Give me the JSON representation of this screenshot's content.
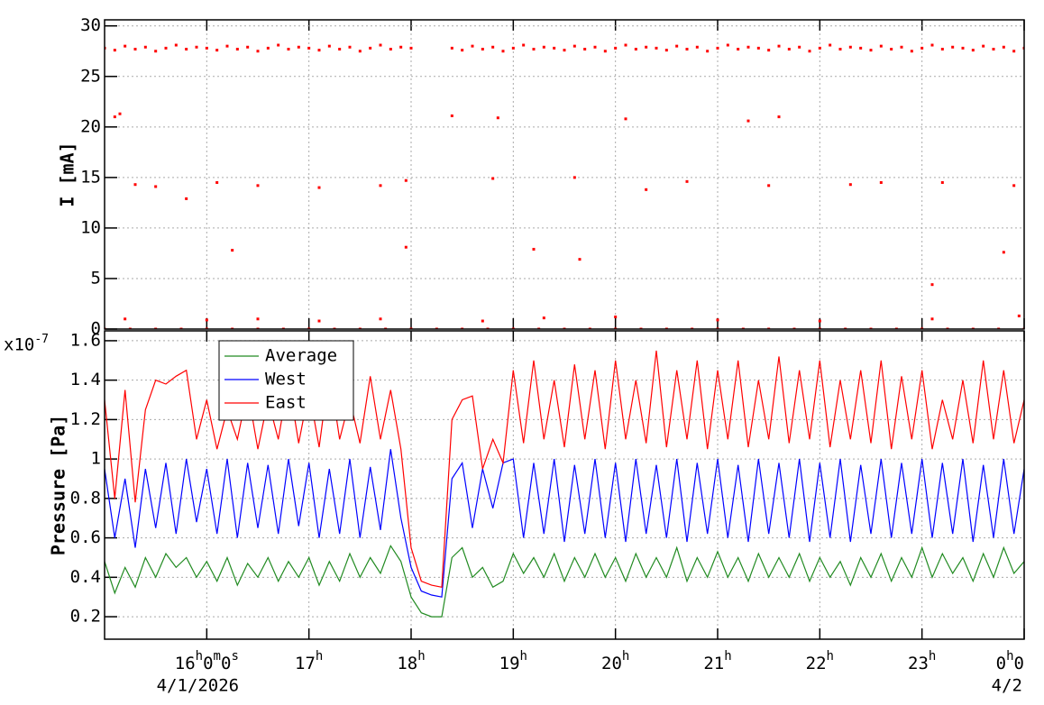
{
  "chart_data": [
    {
      "type": "scatter",
      "y_label": "I [mA]",
      "color": "#ff0000",
      "xlim": [
        15,
        24
      ],
      "ylim": [
        0,
        30.6
      ],
      "grid": true,
      "xticks": [
        16,
        17,
        18,
        19,
        20,
        21,
        22,
        23,
        24
      ],
      "yticks": [
        0,
        5,
        10,
        15,
        20,
        25,
        30
      ],
      "x": [
        15,
        15.1,
        15.2,
        15.3,
        15.4,
        15.5,
        15.6,
        15.7,
        15.8,
        15.9,
        16,
        16.1,
        16.2,
        16.3,
        16.4,
        16.5,
        16.6,
        16.7,
        16.8,
        16.9,
        17,
        17.1,
        17.2,
        17.3,
        17.4,
        17.5,
        17.6,
        17.7,
        17.8,
        17.9,
        18,
        18.4,
        18.5,
        18.6,
        18.7,
        18.8,
        18.9,
        19,
        19.1,
        19.2,
        19.3,
        19.4,
        19.5,
        19.6,
        19.7,
        19.8,
        19.9,
        20,
        20.1,
        20.2,
        20.3,
        20.4,
        20.5,
        20.6,
        20.7,
        20.8,
        20.9,
        21,
        21.1,
        21.2,
        21.3,
        21.4,
        21.5,
        21.6,
        21.7,
        21.8,
        21.9,
        22,
        22.1,
        22.2,
        22.3,
        22.4,
        22.5,
        22.6,
        22.7,
        22.8,
        22.9,
        23,
        23.1,
        23.2,
        23.3,
        23.4,
        23.5,
        23.6,
        23.7,
        23.8,
        23.9,
        24,
        15.1,
        15.15,
        15.3,
        15.5,
        15.8,
        16.1,
        16.25,
        16.5,
        17.1,
        17.7,
        17.95,
        17.95,
        18.4,
        18.85,
        18.8,
        19.2,
        19.65,
        19.6,
        20.1,
        20.3,
        20.7,
        21.3,
        21.6,
        21.5,
        22.3,
        22.6,
        23.1,
        23.2,
        23.8,
        23.9,
        15.2,
        16,
        16.5,
        17.1,
        17.7,
        18.7,
        19.3,
        20,
        21,
        22,
        23.1,
        23.95,
        15,
        15.25,
        15.5,
        15.75,
        16,
        16.25,
        16.5,
        16.75,
        17,
        17.25,
        17.5,
        17.75,
        18,
        18.25,
        18.5,
        18.75,
        19,
        19.25,
        19.5,
        19.75,
        20,
        20.25,
        20.5,
        20.75,
        21,
        21.25,
        21.5,
        21.75,
        22,
        22.25,
        22.5,
        22.75,
        23,
        23.25,
        23.5,
        23.75,
        24
      ],
      "values": [
        27.8,
        27.6,
        28,
        27.7,
        27.9,
        27.5,
        27.8,
        28.1,
        27.7,
        27.9,
        27.8,
        27.6,
        28,
        27.7,
        27.9,
        27.5,
        27.8,
        28.1,
        27.7,
        27.9,
        27.8,
        27.6,
        28,
        27.7,
        27.9,
        27.5,
        27.8,
        28.1,
        27.7,
        27.9,
        27.8,
        27.8,
        27.6,
        28,
        27.7,
        27.9,
        27.5,
        27.8,
        28.1,
        27.7,
        27.9,
        27.8,
        27.6,
        28,
        27.7,
        27.9,
        27.5,
        27.8,
        28.1,
        27.7,
        27.9,
        27.8,
        27.6,
        28,
        27.7,
        27.9,
        27.5,
        27.8,
        28.1,
        27.7,
        27.9,
        27.8,
        27.6,
        28,
        27.7,
        27.9,
        27.5,
        27.8,
        28.1,
        27.7,
        27.9,
        27.8,
        27.6,
        28,
        27.7,
        27.9,
        27.5,
        27.8,
        28.1,
        27.7,
        27.9,
        27.8,
        27.6,
        28,
        27.7,
        27.9,
        27.5,
        27.8,
        21,
        21.3,
        14.3,
        14.1,
        12.9,
        14.5,
        7.8,
        14.2,
        14,
        14.2,
        8.1,
        14.7,
        21.1,
        20.9,
        14.9,
        7.9,
        6.9,
        15,
        20.8,
        13.8,
        14.6,
        20.6,
        21,
        14.2,
        14.3,
        14.5,
        4.4,
        14.5,
        7.6,
        14.2,
        1,
        0.9,
        1,
        0.8,
        1,
        0.8,
        1.1,
        1.2,
        0.9,
        0.8,
        1,
        1.3,
        0,
        0,
        0,
        0,
        0,
        0,
        0,
        0,
        0,
        0,
        0,
        0,
        0,
        0,
        0,
        0,
        0,
        0,
        0,
        0,
        0,
        0,
        0,
        0,
        0,
        0,
        0,
        0,
        0,
        0,
        0,
        0,
        0,
        0,
        0,
        0,
        0
      ]
    },
    {
      "type": "line",
      "y_label": "Pressure [Pa]",
      "y_multiplier": "x10",
      "y_exponent": "-7",
      "xlim": [
        15,
        24
      ],
      "ylim": [
        0.086,
        1.65
      ],
      "grid": true,
      "legend": "top-left",
      "xticks": [
        {
          "value": 16,
          "label": "16h0m0s"
        },
        {
          "value": 17,
          "label": "17h"
        },
        {
          "value": 18,
          "label": "18h"
        },
        {
          "value": 19,
          "label": "19h"
        },
        {
          "value": 20,
          "label": "20h"
        },
        {
          "value": 21,
          "label": "21h"
        },
        {
          "value": 22,
          "label": "22h"
        },
        {
          "value": 23,
          "label": "23h"
        },
        {
          "value": 24,
          "label": "0h0"
        }
      ],
      "x_date_labels": [
        {
          "value": 16,
          "label": "4/1/2026"
        },
        {
          "value": 24,
          "label": "4/2"
        }
      ],
      "yticks": [
        0.2,
        0.4,
        0.6,
        0.8,
        1,
        1.2,
        1.4,
        1.6
      ],
      "x": [
        15,
        15.1,
        15.2,
        15.3,
        15.4,
        15.5,
        15.6,
        15.7,
        15.8,
        15.9,
        16,
        16.1,
        16.2,
        16.3,
        16.4,
        16.5,
        16.6,
        16.7,
        16.8,
        16.9,
        17,
        17.1,
        17.2,
        17.3,
        17.4,
        17.5,
        17.6,
        17.7,
        17.8,
        17.9,
        18,
        18.1,
        18.2,
        18.3,
        18.4,
        18.5,
        18.6,
        18.7,
        18.8,
        18.9,
        19,
        19.1,
        19.2,
        19.3,
        19.4,
        19.5,
        19.6,
        19.7,
        19.8,
        19.9,
        20,
        20.1,
        20.2,
        20.3,
        20.4,
        20.5,
        20.6,
        20.7,
        20.8,
        20.9,
        21,
        21.1,
        21.2,
        21.3,
        21.4,
        21.5,
        21.6,
        21.7,
        21.8,
        21.9,
        22,
        22.1,
        22.2,
        22.3,
        22.4,
        22.5,
        22.6,
        22.7,
        22.8,
        22.9,
        23,
        23.1,
        23.2,
        23.3,
        23.4,
        23.5,
        23.6,
        23.7,
        23.8,
        23.9,
        24
      ],
      "series": [
        {
          "name": "Average",
          "color": "#228b22",
          "values": [
            0.48,
            0.32,
            0.45,
            0.35,
            0.5,
            0.4,
            0.52,
            0.45,
            0.5,
            0.4,
            0.48,
            0.38,
            0.5,
            0.36,
            0.47,
            0.4,
            0.5,
            0.38,
            0.48,
            0.4,
            0.5,
            0.36,
            0.48,
            0.38,
            0.52,
            0.4,
            0.5,
            0.42,
            0.56,
            0.48,
            0.3,
            0.22,
            0.2,
            0.2,
            0.5,
            0.55,
            0.4,
            0.45,
            0.35,
            0.38,
            0.52,
            0.42,
            0.5,
            0.4,
            0.52,
            0.38,
            0.5,
            0.4,
            0.52,
            0.4,
            0.5,
            0.38,
            0.52,
            0.4,
            0.5,
            0.4,
            0.55,
            0.38,
            0.5,
            0.4,
            0.53,
            0.4,
            0.5,
            0.38,
            0.52,
            0.4,
            0.5,
            0.4,
            0.52,
            0.38,
            0.5,
            0.4,
            0.48,
            0.36,
            0.5,
            0.4,
            0.52,
            0.38,
            0.5,
            0.4,
            0.55,
            0.4,
            0.52,
            0.42,
            0.5,
            0.38,
            0.52,
            0.4,
            0.55,
            0.42,
            0.48
          ]
        },
        {
          "name": "West",
          "color": "#0000ff",
          "values": [
            0.95,
            0.6,
            0.9,
            0.55,
            0.95,
            0.65,
            0.98,
            0.62,
            1,
            0.68,
            0.95,
            0.62,
            1,
            0.6,
            0.98,
            0.65,
            0.97,
            0.62,
            1,
            0.66,
            0.98,
            0.6,
            0.95,
            0.62,
            1,
            0.6,
            0.96,
            0.64,
            1.05,
            0.7,
            0.45,
            0.33,
            0.31,
            0.3,
            0.9,
            0.98,
            0.65,
            0.95,
            0.75,
            0.98,
            1,
            0.6,
            0.98,
            0.62,
            1,
            0.58,
            0.97,
            0.62,
            1,
            0.6,
            0.98,
            0.58,
            1,
            0.62,
            0.97,
            0.6,
            1,
            0.58,
            0.98,
            0.62,
            1,
            0.6,
            0.97,
            0.58,
            1,
            0.62,
            0.98,
            0.6,
            1,
            0.58,
            0.98,
            0.6,
            1,
            0.58,
            0.97,
            0.62,
            1,
            0.6,
            0.98,
            0.62,
            1,
            0.6,
            0.98,
            0.62,
            1,
            0.58,
            0.97,
            0.6,
            1,
            0.62,
            0.95
          ]
        },
        {
          "name": "East",
          "color": "#ff0000",
          "values": [
            1.3,
            0.8,
            1.35,
            0.78,
            1.25,
            1.4,
            1.38,
            1.42,
            1.45,
            1.1,
            1.3,
            1.05,
            1.25,
            1.1,
            1.35,
            1.05,
            1.3,
            1.1,
            1.4,
            1.08,
            1.35,
            1.06,
            1.45,
            1.1,
            1.3,
            1.08,
            1.42,
            1.1,
            1.35,
            1.05,
            0.55,
            0.38,
            0.36,
            0.35,
            1.2,
            1.3,
            1.32,
            0.95,
            1.1,
            0.98,
            1.45,
            1.08,
            1.5,
            1.1,
            1.4,
            1.06,
            1.48,
            1.1,
            1.45,
            1.05,
            1.5,
            1.1,
            1.4,
            1.08,
            1.55,
            1.06,
            1.45,
            1.1,
            1.5,
            1.05,
            1.45,
            1.1,
            1.5,
            1.06,
            1.4,
            1.1,
            1.52,
            1.08,
            1.45,
            1.1,
            1.5,
            1.06,
            1.4,
            1.1,
            1.45,
            1.08,
            1.5,
            1.05,
            1.42,
            1.1,
            1.45,
            1.05,
            1.3,
            1.1,
            1.4,
            1.08,
            1.5,
            1.1,
            1.45,
            1.08,
            1.3
          ]
        }
      ]
    }
  ]
}
